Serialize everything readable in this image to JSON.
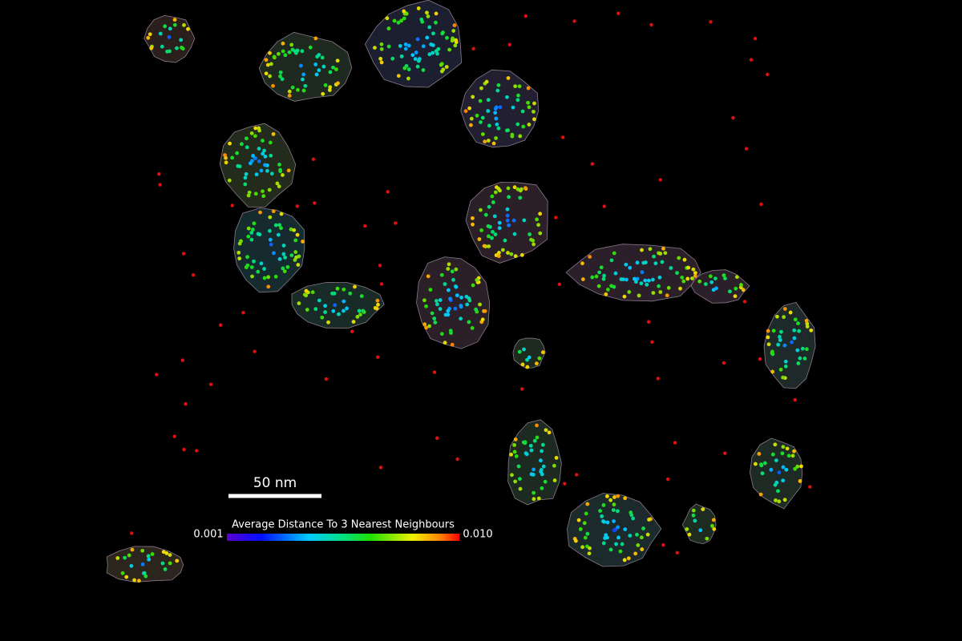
{
  "scale_bar": {
    "label": "50 nm"
  },
  "colorbar": {
    "title": "Average Distance To 3 Nearest Neighbours",
    "min_label": "0.001",
    "max_label": "0.010"
  }
}
